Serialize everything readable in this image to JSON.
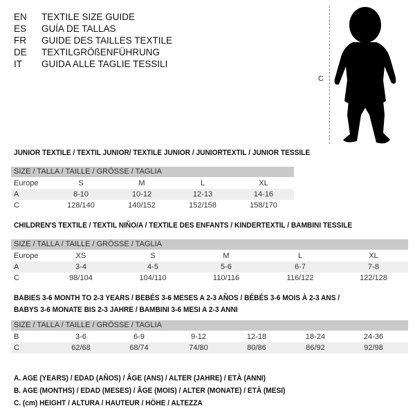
{
  "languages": [
    {
      "code": "EN",
      "text": "TEXTILE SIZE GUIDE"
    },
    {
      "code": "ES",
      "text": "GUÍA DE TALLAS"
    },
    {
      "code": "FR",
      "text": "GUIDE DES TAILLES TEXTILE"
    },
    {
      "code": "DE",
      "text": "TEXTILGRÖßENFÜHRUNG"
    },
    {
      "code": "IT",
      "text": "GUIDA ALLE TAGLIE TESSILI"
    }
  ],
  "figure": {
    "height_label": "C",
    "icon": "baby-silhouette"
  },
  "junior": {
    "title": "JUNIOR TEXTILE / TEXTIL JUNIOR/ TEXTILE JUNIOR / JUNIORTEXTIL / JUNIOR TESSILE",
    "header": "SIZE / TALLA / TAILLE / GRÖSSE / TAGLIA",
    "rows": [
      {
        "label": "Europe",
        "values": [
          "S",
          "M",
          "L",
          "XL"
        ]
      },
      {
        "label": "A",
        "values": [
          "8-10",
          "10-12",
          "12-13",
          "14-16"
        ]
      },
      {
        "label": "C",
        "values": [
          "128/140",
          "140/152",
          "152/158",
          "158/170"
        ]
      }
    ]
  },
  "children": {
    "title": "CHILDREN'S TEXTILE / TEXTIL NIÑO/A / TEXTILE DES ENFANTS / KINDERTEXTIL / BAMBINI TESSILE",
    "header": "SIZE / TALLA / TAILLE / GRÖSSE / TAGLIA",
    "rows": [
      {
        "label": "Europe",
        "values": [
          "XS",
          "S",
          "M",
          "L",
          "XL"
        ]
      },
      {
        "label": "A",
        "values": [
          "3-4",
          "4-5",
          "5-6",
          "6-7",
          "7-8"
        ]
      },
      {
        "label": "C",
        "values": [
          "98/104",
          "104/110",
          "110/116",
          "116/122",
          "122/128"
        ]
      }
    ]
  },
  "babies": {
    "title_line1": "BABIES 3-6 MONTH TO 2-3 YEARS / BEBÉS 3-6 MESES A 2-3 AÑOS / BÉBÉS 3-6 MOIS À 2-3 ANS /",
    "title_line2": "BABYS 3-6 MONATE BIS 2-3 JAHRE / BAMBINI 3-6 MESI A 2-3 ANNI",
    "header": "SIZE / TALLA / TAILLE / GRÖSSE / TAGLIA",
    "rows": [
      {
        "label": "B",
        "values": [
          "3-6",
          "6-9",
          "9-12",
          "12-18",
          "18-24",
          "24-36"
        ]
      },
      {
        "label": "C",
        "values": [
          "62/68",
          "68/74",
          "74/80",
          "80/86",
          "86/92",
          "92/98"
        ]
      }
    ]
  },
  "legend": [
    "A. AGE (YEARS) / EDAD (AÑOS) / ÂGE (ANS) / ALTER (JAHRE) / ETÀ (ANNI)",
    "B. AGE (MONTHS) / EDAD (MESES) / ÂGE (MOIS) / ALTER (MONATE) / ETÀ (MESI)",
    "C. (cm) HEIGHT / ALTURA / HAUTEUR / HÖHE / ALTEZZA"
  ]
}
